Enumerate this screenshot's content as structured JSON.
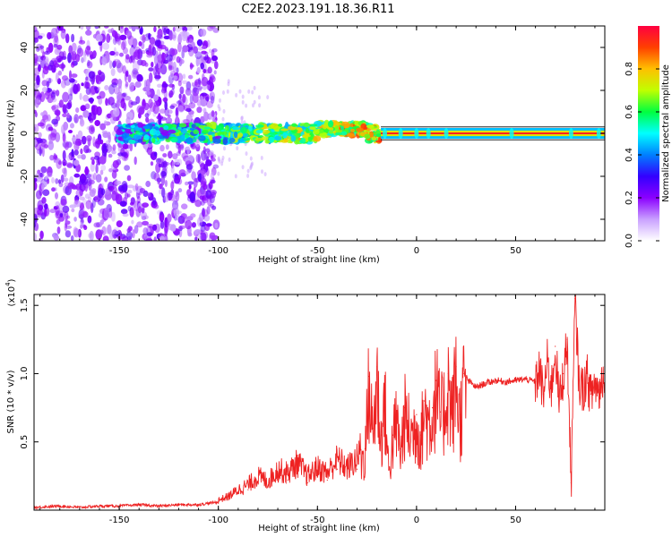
{
  "title": "C2E2.2023.191.18.36.R11",
  "chart_data": [
    {
      "type": "heatmap",
      "xlabel": "Height of straight line (km)",
      "ylabel": "Frequency (Hz)",
      "xlim": [
        -193,
        95
      ],
      "ylim": [
        -50,
        50
      ],
      "x_ticks": [
        -150,
        -100,
        -50,
        0,
        50
      ],
      "x_tick_labels": [
        "-150",
        "-100",
        "-50",
        "0",
        "50"
      ],
      "y_ticks": [
        -40,
        -20,
        0,
        20,
        40
      ],
      "y_tick_labels": [
        "-40",
        "-20",
        "0",
        "20",
        "40"
      ],
      "colorbar": {
        "label": "Normalized spectral amplitude",
        "range": [
          0,
          1
        ],
        "ticks": [
          0.0,
          0.2,
          0.4,
          0.6,
          0.8
        ],
        "tick_labels": [
          "0.0",
          "0.2",
          "0.4",
          "0.6",
          "0.8"
        ],
        "colormap": [
          "#ffffff",
          "#c9a0ff",
          "#8b00ff",
          "#3300ff",
          "#0080ff",
          "#00ffff",
          "#00ff40",
          "#c0ff00",
          "#ffc000",
          "#ff4000",
          "#ff0040"
        ]
      },
      "grid": false
    },
    {
      "type": "line",
      "xlabel": "Height of straight line (km)",
      "ylabel": "SNR (10 * v/v)",
      "y_multiplier_label": "(x10",
      "y_multiplier_exp": "4",
      "y_multiplier_close": ")",
      "xlim": [
        -193,
        95
      ],
      "ylim": [
        0,
        1.58
      ],
      "x_ticks": [
        -150,
        -100,
        -50,
        0,
        50
      ],
      "x_tick_labels": [
        "-150",
        "-100",
        "-50",
        "0",
        "50"
      ],
      "y_ticks": [
        0.5,
        1.0,
        1.5
      ],
      "y_tick_labels": [
        "0.5",
        "1.0",
        "1.5"
      ],
      "series": [
        {
          "color": "#ee2222",
          "x": [
            -193,
            -180,
            -170,
            -160,
            -150,
            -140,
            -130,
            -120,
            -110,
            -105,
            -100,
            -95,
            -90,
            -85,
            -80,
            -75,
            -70,
            -65,
            -60,
            -55,
            -50,
            -45,
            -40,
            -35,
            -30,
            -26,
            -24,
            -22,
            -20,
            -18,
            -16,
            -14,
            -12,
            -10,
            -8,
            -6,
            -4,
            -2,
            0,
            2,
            4,
            6,
            8,
            10,
            12,
            14,
            16,
            18,
            20,
            22,
            24,
            26,
            30,
            35,
            40,
            45,
            50,
            55,
            60,
            62,
            64,
            66,
            68,
            70,
            72,
            74,
            76,
            78,
            80,
            82,
            84,
            86,
            88,
            90,
            92,
            95
          ],
          "y": [
            0.02,
            0.03,
            0.02,
            0.03,
            0.03,
            0.04,
            0.03,
            0.04,
            0.04,
            0.05,
            0.06,
            0.08,
            0.12,
            0.15,
            0.2,
            0.17,
            0.24,
            0.22,
            0.28,
            0.2,
            0.25,
            0.22,
            0.3,
            0.25,
            0.3,
            0.45,
            0.98,
            0.6,
            1.05,
            0.55,
            0.85,
            0.3,
            0.55,
            0.7,
            0.45,
            0.75,
            0.65,
            0.6,
            0.7,
            0.55,
            0.8,
            0.7,
            0.75,
            0.95,
            0.72,
            0.8,
            1.0,
            0.75,
            1.05,
            0.7,
            1.0,
            0.95,
            0.9,
            0.93,
            0.95,
            0.94,
            0.95,
            0.96,
            0.94,
            1.05,
            0.85,
            1.1,
            0.9,
            1.2,
            0.8,
            1.0,
            1.25,
            0.2,
            1.55,
            0.95,
            0.9,
            1.0,
            0.85,
            0.95,
            0.88,
            1.05
          ]
        }
      ],
      "grid": false
    }
  ]
}
